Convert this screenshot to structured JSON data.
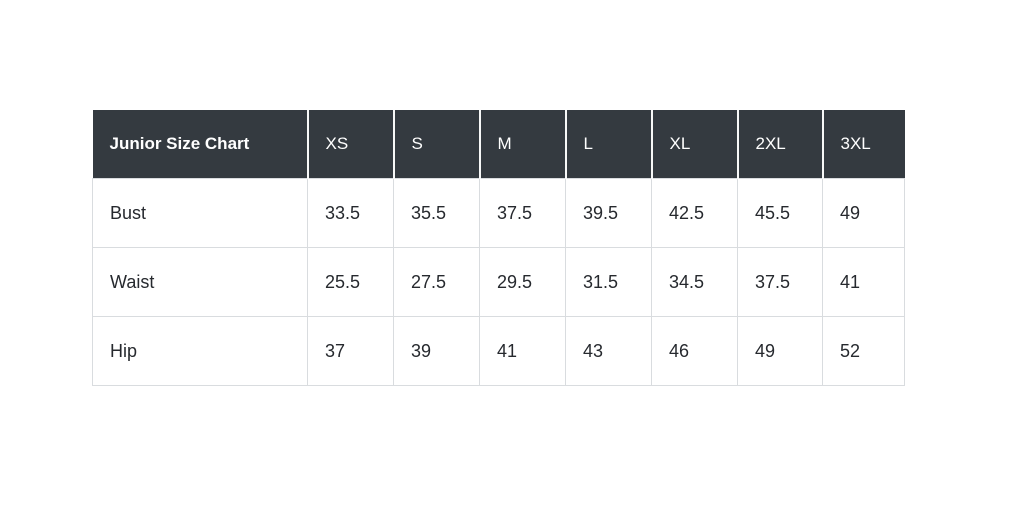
{
  "chart_data": {
    "type": "table",
    "title": "Junior Size Chart",
    "columns": [
      "XS",
      "S",
      "M",
      "L",
      "XL",
      "2XL",
      "3XL"
    ],
    "rows": [
      {
        "label": "Bust",
        "values": [
          "33.5",
          "35.5",
          "37.5",
          "39.5",
          "42.5",
          "45.5",
          "49"
        ]
      },
      {
        "label": "Waist",
        "values": [
          "25.5",
          "27.5",
          "29.5",
          "31.5",
          "34.5",
          "37.5",
          "41"
        ]
      },
      {
        "label": "Hip",
        "values": [
          "37",
          "39",
          "41",
          "43",
          "46",
          "49",
          "52"
        ]
      }
    ]
  },
  "colors": {
    "page_background": "#ffffff",
    "header_background": "#343a40",
    "header_text": "#ffffff",
    "header_separator": "#f7f8f8",
    "body_text": "#26292e",
    "grid_border": "#d9dcdf"
  }
}
